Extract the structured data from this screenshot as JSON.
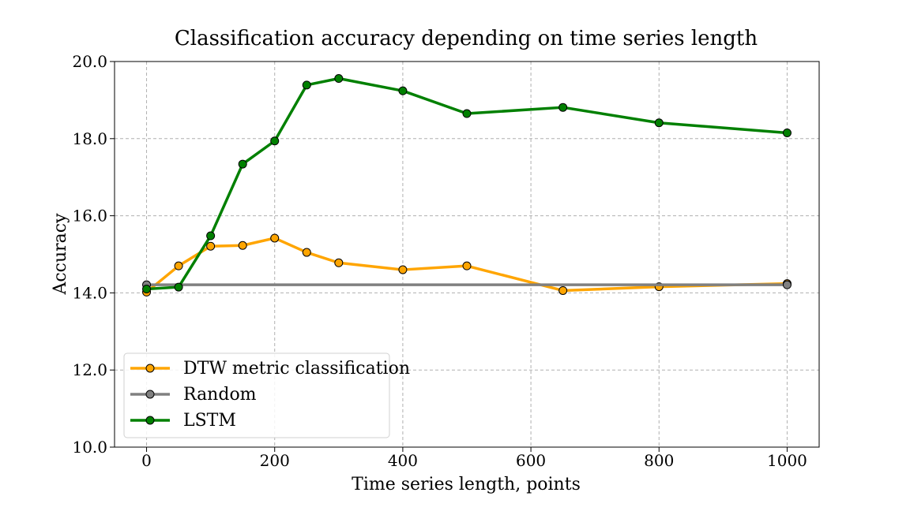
{
  "chart_data": {
    "type": "line",
    "title": "Classification accuracy depending on time series length",
    "xlabel": "Time series length, points",
    "ylabel": "Accuracy",
    "xlim": [
      -50,
      1050
    ],
    "ylim": [
      10.0,
      20.0
    ],
    "xticks": [
      0,
      200,
      400,
      600,
      800,
      1000
    ],
    "yticks": [
      10.0,
      12.0,
      14.0,
      16.0,
      18.0,
      20.0
    ],
    "xtick_labels": [
      "0",
      "200",
      "400",
      "600",
      "800",
      "1000"
    ],
    "ytick_labels": [
      "10.0",
      "12.0",
      "14.0",
      "16.0",
      "18.0",
      "20.0"
    ],
    "grid": true,
    "legend_position": "lower-left",
    "series": [
      {
        "name": "DTW metric classification",
        "color": "#ffa500",
        "x": [
          0,
          50,
          100,
          150,
          200,
          250,
          300,
          400,
          500,
          650,
          800,
          1000
        ],
        "y": [
          14.02,
          14.7,
          15.21,
          15.23,
          15.42,
          15.05,
          14.78,
          14.6,
          14.7,
          14.06,
          14.16,
          14.24
        ]
      },
      {
        "name": "Random",
        "color": "#808080",
        "x": [
          0,
          1000
        ],
        "y": [
          14.21,
          14.21
        ]
      },
      {
        "name": "LSTM",
        "color": "#008000",
        "x": [
          0,
          50,
          100,
          150,
          200,
          250,
          300,
          400,
          500,
          650,
          800,
          1000
        ],
        "y": [
          14.1,
          14.15,
          15.48,
          17.34,
          17.94,
          19.39,
          19.56,
          19.24,
          18.65,
          18.81,
          18.41,
          18.15
        ]
      }
    ]
  }
}
